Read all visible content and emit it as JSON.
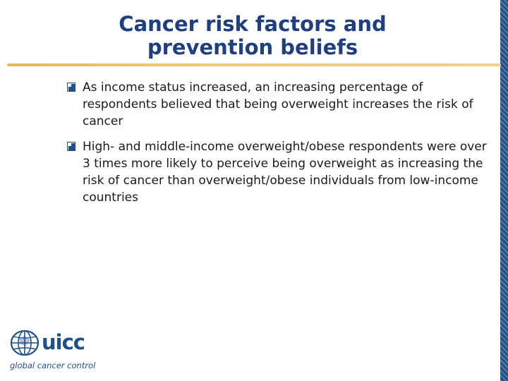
{
  "slide": {
    "title_line1": "Cancer risk factors and",
    "title_line2": "prevention beliefs",
    "bullets": [
      {
        "text": "As income status increased, an increasing  percentage of respondents believed that being overweight increases the risk of cancer",
        "icon": "checkbox-icon"
      },
      {
        "text": "High- and middle-income overweight/obese respondents were over 3 times more likely to perceive being overweight as increasing the risk of cancer than overweight/obese individuals from low-income countries",
        "icon": "checkbox-icon"
      }
    ]
  },
  "logo": {
    "wordmark": "uicc",
    "tagline": "global cancer control",
    "icon": "globe-icon"
  },
  "colors": {
    "title": "#1f3f80",
    "rule": "#f0c872",
    "brand": "#1f4f8c",
    "text": "#1a1a1a"
  }
}
